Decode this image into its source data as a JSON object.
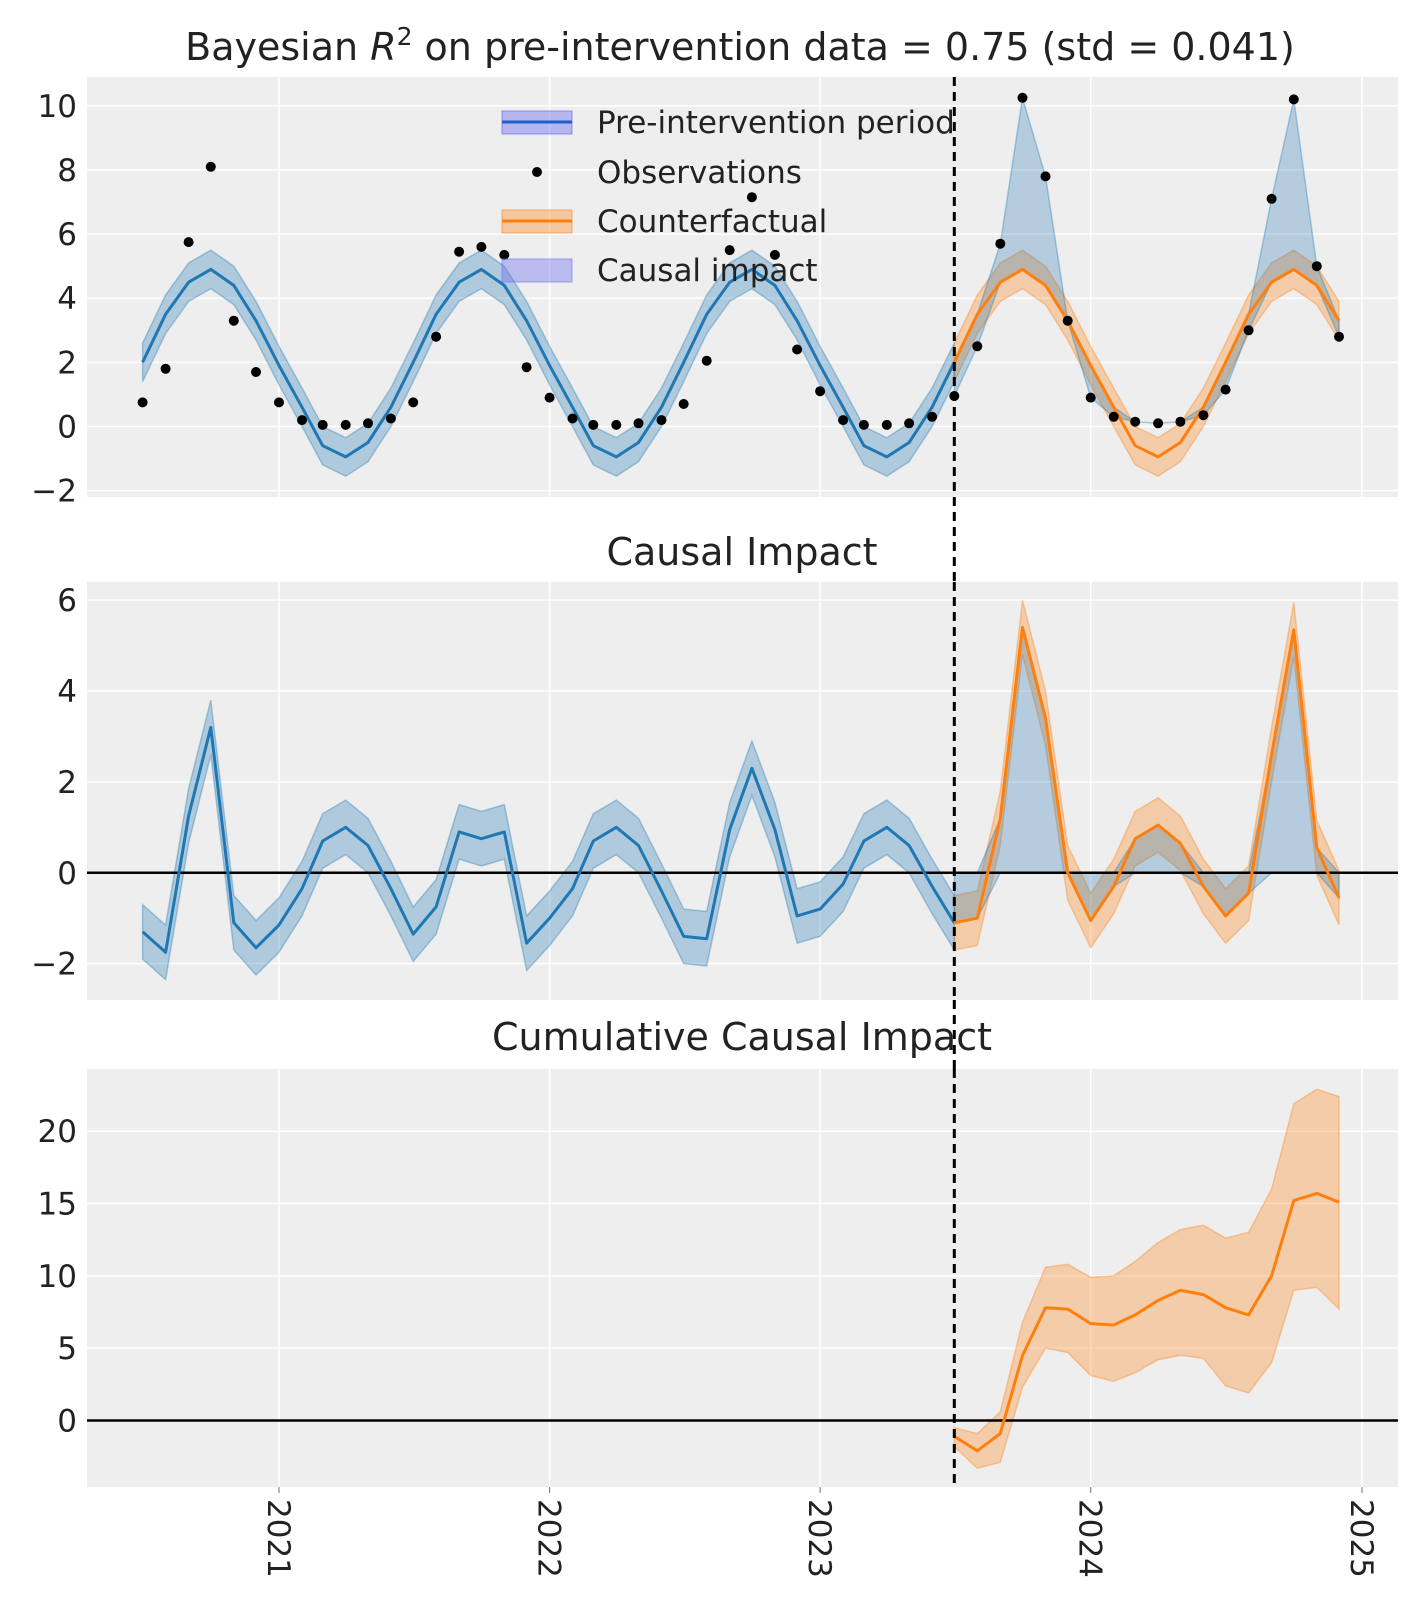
{
  "figure": {
    "panels": [
      "top",
      "middle",
      "bottom"
    ],
    "shared_x_tick_labels": [
      "2021",
      "2022",
      "2023",
      "2024",
      "2025"
    ]
  },
  "colors": {
    "pre_line": "#1f77b4",
    "pre_band": "#1f77b4",
    "counterfactual_line": "#ff7f0e",
    "counterfactual_band": "#ff7f0e",
    "legend_causal_patch": "#6e6ef0",
    "observations": "#000000",
    "panel_bg": "#eeeeee",
    "grid": "#ffffff",
    "intervention_line": "#000000"
  },
  "chart_data": [
    {
      "type": "line",
      "title_prefix": "Bayesian ",
      "title_math": "R",
      "title_sup": "2",
      "title_suffix": " on pre-intervention data = 0.75 (std = 0.041)",
      "xlabel": "",
      "ylabel": "",
      "ylim": [
        -2.2,
        10.9
      ],
      "yticks": [
        -2,
        0,
        2,
        4,
        6,
        8,
        10
      ],
      "ytick_labels": [
        "−2",
        "0",
        "2",
        "4",
        "6",
        "8",
        "10"
      ],
      "grid": true,
      "intervention_date": "2023-07-01",
      "legend": {
        "placement": "upper center",
        "entries": [
          "Pre-intervention period",
          "Observations",
          "Counterfactual",
          "Causal impact"
        ]
      },
      "series": [
        {
          "name": "Pre-intervention period",
          "kind": "mean_with_band",
          "x": [
            "2020-07",
            "2020-08",
            "2020-09",
            "2020-10",
            "2020-11",
            "2020-12",
            "2021-01",
            "2021-02",
            "2021-03",
            "2021-04",
            "2021-05",
            "2021-06",
            "2021-07",
            "2021-08",
            "2021-09",
            "2021-10",
            "2021-11",
            "2021-12",
            "2022-01",
            "2022-02",
            "2022-03",
            "2022-04",
            "2022-05",
            "2022-06",
            "2022-07",
            "2022-08",
            "2022-09",
            "2022-10",
            "2022-11",
            "2022-12",
            "2023-01",
            "2023-02",
            "2023-03",
            "2023-04",
            "2023-05",
            "2023-06",
            "2023-07"
          ],
          "mean": [
            2.0,
            3.5,
            4.5,
            4.9,
            4.4,
            3.3,
            1.9,
            0.6,
            -0.6,
            -0.95,
            -0.5,
            0.6,
            2.0,
            3.5,
            4.5,
            4.9,
            4.4,
            3.3,
            1.9,
            0.6,
            -0.6,
            -0.95,
            -0.5,
            0.6,
            2.0,
            3.5,
            4.5,
            4.9,
            4.4,
            3.3,
            1.9,
            0.6,
            -0.6,
            -0.95,
            -0.5,
            0.6,
            2.0
          ],
          "lower": [
            1.4,
            2.9,
            3.9,
            4.3,
            3.8,
            2.7,
            1.3,
            0.0,
            -1.2,
            -1.55,
            -1.1,
            0.0,
            1.4,
            2.9,
            3.9,
            4.3,
            3.8,
            2.7,
            1.3,
            0.0,
            -1.2,
            -1.55,
            -1.1,
            0.0,
            1.4,
            2.9,
            3.9,
            4.3,
            3.8,
            2.7,
            1.3,
            0.0,
            -1.2,
            -1.55,
            -1.1,
            0.0,
            1.4
          ],
          "upper": [
            2.6,
            4.1,
            5.1,
            5.5,
            5.0,
            3.9,
            2.5,
            1.2,
            0.0,
            -0.35,
            0.1,
            1.2,
            2.6,
            4.1,
            5.1,
            5.5,
            5.0,
            3.9,
            2.5,
            1.2,
            0.0,
            -0.35,
            0.1,
            1.2,
            2.6,
            4.1,
            5.1,
            5.5,
            5.0,
            3.9,
            2.5,
            1.2,
            0.0,
            -0.35,
            0.1,
            1.2,
            2.6
          ]
        },
        {
          "name": "Counterfactual",
          "kind": "mean_with_band",
          "x": [
            "2023-07",
            "2023-08",
            "2023-09",
            "2023-10",
            "2023-11",
            "2023-12",
            "2024-01",
            "2024-02",
            "2024-03",
            "2024-04",
            "2024-05",
            "2024-06",
            "2024-07",
            "2024-08",
            "2024-09",
            "2024-10",
            "2024-11",
            "2024-12"
          ],
          "mean": [
            2.0,
            3.5,
            4.5,
            4.9,
            4.4,
            3.3,
            1.9,
            0.6,
            -0.6,
            -0.95,
            -0.5,
            0.6,
            2.0,
            3.5,
            4.5,
            4.9,
            4.4,
            3.3
          ],
          "lower": [
            1.4,
            2.9,
            3.9,
            4.3,
            3.8,
            2.7,
            1.3,
            0.0,
            -1.2,
            -1.55,
            -1.1,
            0.0,
            1.4,
            2.9,
            3.9,
            4.3,
            3.8,
            2.7
          ],
          "upper": [
            2.6,
            4.1,
            5.1,
            5.5,
            5.0,
            3.9,
            2.5,
            1.2,
            0.0,
            -0.35,
            0.1,
            1.2,
            2.6,
            4.1,
            5.1,
            5.5,
            5.0,
            3.9
          ]
        },
        {
          "name": "Observations",
          "kind": "scatter",
          "x": [
            "2020-07",
            "2020-08",
            "2020-09",
            "2020-10",
            "2020-11",
            "2020-12",
            "2021-01",
            "2021-02",
            "2021-03",
            "2021-04",
            "2021-05",
            "2021-06",
            "2021-07",
            "2021-08",
            "2021-09",
            "2021-10",
            "2021-11",
            "2021-12",
            "2022-01",
            "2022-02",
            "2022-03",
            "2022-04",
            "2022-05",
            "2022-06",
            "2022-07",
            "2022-08",
            "2022-09",
            "2022-10",
            "2022-11",
            "2022-12",
            "2023-01",
            "2023-02",
            "2023-03",
            "2023-04",
            "2023-05",
            "2023-06",
            "2023-07",
            "2023-08",
            "2023-09",
            "2023-10",
            "2023-11",
            "2023-12",
            "2024-01",
            "2024-02",
            "2024-03",
            "2024-04",
            "2024-05",
            "2024-06",
            "2024-07",
            "2024-08",
            "2024-09",
            "2024-10",
            "2024-11",
            "2024-12"
          ],
          "y": [
            0.75,
            1.8,
            5.75,
            8.1,
            3.3,
            1.7,
            0.75,
            0.2,
            0.05,
            0.05,
            0.1,
            0.25,
            0.75,
            2.8,
            5.45,
            5.6,
            5.35,
            1.85,
            0.9,
            0.25,
            0.05,
            0.05,
            0.1,
            0.2,
            0.7,
            2.05,
            5.5,
            7.15,
            5.35,
            2.4,
            1.1,
            0.2,
            0.05,
            0.05,
            0.1,
            0.3,
            0.95,
            2.5,
            5.7,
            10.25,
            7.8,
            3.3,
            0.9,
            0.3,
            0.15,
            0.1,
            0.15,
            0.35,
            1.15,
            3.0,
            7.1,
            10.2,
            5.0,
            2.8
          ]
        },
        {
          "name": "Causal impact",
          "kind": "band",
          "x": [
            "2023-07",
            "2023-08",
            "2023-09",
            "2023-10",
            "2023-11",
            "2023-12",
            "2024-01",
            "2024-02",
            "2024-03",
            "2024-04",
            "2024-05",
            "2024-06",
            "2024-07",
            "2024-08",
            "2024-09",
            "2024-10",
            "2024-11",
            "2024-12"
          ],
          "lower": [
            0.95,
            2.5,
            4.5,
            4.9,
            4.4,
            3.3,
            0.9,
            0.3,
            0.15,
            0.1,
            0.15,
            0.35,
            1.15,
            3.0,
            4.5,
            4.9,
            4.4,
            2.8
          ],
          "upper": [
            2.0,
            3.5,
            5.7,
            10.25,
            7.8,
            3.3,
            1.9,
            0.6,
            0.15,
            0.1,
            0.15,
            0.6,
            2.0,
            3.5,
            7.1,
            10.2,
            5.0,
            3.3
          ]
        }
      ]
    },
    {
      "type": "line",
      "title": "Causal Impact",
      "xlabel": "",
      "ylabel": "",
      "ylim": [
        -2.8,
        6.4
      ],
      "yticks": [
        -2,
        0,
        2,
        4,
        6
      ],
      "ytick_labels": [
        "−2",
        "0",
        "2",
        "4",
        "6"
      ],
      "grid": true,
      "intervention_date": "2023-07-01",
      "zero_line": true,
      "series": [
        {
          "kind": "mean_with_band",
          "x": [
            "2020-07",
            "2020-08",
            "2020-09",
            "2020-10",
            "2020-11",
            "2020-12",
            "2021-01",
            "2021-02",
            "2021-03",
            "2021-04",
            "2021-05",
            "2021-06",
            "2021-07",
            "2021-08",
            "2021-09",
            "2021-10",
            "2021-11",
            "2021-12",
            "2022-01",
            "2022-02",
            "2022-03",
            "2022-04",
            "2022-05",
            "2022-06",
            "2022-07",
            "2022-08",
            "2022-09",
            "2022-10",
            "2022-11",
            "2022-12",
            "2023-01",
            "2023-02",
            "2023-03",
            "2023-04",
            "2023-05",
            "2023-06",
            "2023-07"
          ],
          "mean": [
            -1.3,
            -1.75,
            1.25,
            3.2,
            -1.1,
            -1.65,
            -1.15,
            -0.35,
            0.7,
            1.0,
            0.6,
            -0.35,
            -1.35,
            -0.75,
            0.9,
            0.75,
            0.9,
            -1.55,
            -1.0,
            -0.35,
            0.7,
            1.0,
            0.6,
            -0.4,
            -1.4,
            -1.45,
            0.95,
            2.3,
            0.95,
            -0.95,
            -0.8,
            -0.25,
            0.7,
            1.0,
            0.6,
            -0.3,
            -1.1
          ],
          "lower": [
            -1.9,
            -2.35,
            0.65,
            2.6,
            -1.7,
            -2.25,
            -1.75,
            -0.95,
            0.1,
            0.4,
            0.0,
            -0.95,
            -1.95,
            -1.35,
            0.3,
            0.15,
            0.3,
            -2.15,
            -1.6,
            -0.95,
            0.1,
            0.4,
            0.0,
            -1.0,
            -2.0,
            -2.05,
            0.35,
            1.7,
            0.35,
            -1.55,
            -1.4,
            -0.85,
            0.1,
            0.4,
            0.0,
            -0.9,
            -1.7
          ],
          "upper": [
            -0.7,
            -1.15,
            1.85,
            3.8,
            -0.5,
            -1.05,
            -0.55,
            0.25,
            1.3,
            1.6,
            1.2,
            0.25,
            -0.75,
            -0.15,
            1.5,
            1.35,
            1.5,
            -0.95,
            -0.4,
            0.25,
            1.3,
            1.6,
            1.2,
            0.2,
            -0.8,
            -0.85,
            1.55,
            2.9,
            1.55,
            -0.35,
            -0.2,
            0.35,
            1.3,
            1.6,
            1.2,
            0.3,
            -0.5
          ]
        },
        {
          "kind": "mean_with_band",
          "x": [
            "2023-07",
            "2023-08",
            "2023-09",
            "2023-10",
            "2023-11",
            "2023-12",
            "2024-01",
            "2024-02",
            "2024-03",
            "2024-04",
            "2024-05",
            "2024-06",
            "2024-07",
            "2024-08",
            "2024-09",
            "2024-10",
            "2024-11",
            "2024-12"
          ],
          "mean": [
            -1.1,
            -1.0,
            1.2,
            5.4,
            3.4,
            0.0,
            -1.05,
            -0.3,
            0.75,
            1.05,
            0.65,
            -0.3,
            -0.95,
            -0.45,
            2.6,
            5.35,
            0.55,
            -0.55
          ],
          "lower": [
            -1.7,
            -1.6,
            0.6,
            4.8,
            2.8,
            -0.6,
            -1.65,
            -0.9,
            0.15,
            0.45,
            0.05,
            -0.9,
            -1.55,
            -1.05,
            2.0,
            4.75,
            -0.05,
            -1.15
          ],
          "upper": [
            -0.5,
            -0.4,
            1.8,
            6.0,
            4.0,
            0.6,
            -0.45,
            0.3,
            1.35,
            1.65,
            1.25,
            0.3,
            -0.35,
            0.15,
            3.2,
            5.95,
            1.15,
            0.05
          ]
        },
        {
          "name": "Causal impact",
          "kind": "band",
          "x": [
            "2023-07",
            "2023-08",
            "2023-09",
            "2023-10",
            "2023-11",
            "2023-12",
            "2024-01",
            "2024-02",
            "2024-03",
            "2024-04",
            "2024-05",
            "2024-06",
            "2024-07",
            "2024-08",
            "2024-09",
            "2024-10",
            "2024-11",
            "2024-12"
          ],
          "lower": [
            -1.1,
            -1.0,
            0.0,
            0.0,
            0.0,
            0.0,
            -1.05,
            -0.3,
            0.0,
            0.0,
            0.0,
            -0.3,
            -0.95,
            -0.45,
            0.0,
            0.0,
            0.0,
            -0.55
          ],
          "upper": [
            0.0,
            0.0,
            1.2,
            5.4,
            3.4,
            0.0,
            0.0,
            0.0,
            0.75,
            1.05,
            0.65,
            0.0,
            0.0,
            0.0,
            2.6,
            5.35,
            0.55,
            0.0
          ]
        }
      ]
    },
    {
      "type": "line",
      "title": "Cumulative Causal Impact",
      "xlabel": "",
      "ylabel": "",
      "ylim": [
        -4.6,
        24.3
      ],
      "yticks": [
        0,
        5,
        10,
        15,
        20
      ],
      "ytick_labels": [
        "0",
        "5",
        "10",
        "15",
        "20"
      ],
      "grid": true,
      "intervention_date": "2023-07-01",
      "zero_line": true,
      "xtick_labels": [
        "2021",
        "2022",
        "2023",
        "2024",
        "2025"
      ],
      "xtick_rotation": 90,
      "series": [
        {
          "kind": "mean_with_band",
          "x": [
            "2023-07",
            "2023-08",
            "2023-09",
            "2023-10",
            "2023-11",
            "2023-12",
            "2024-01",
            "2024-02",
            "2024-03",
            "2024-04",
            "2024-05",
            "2024-06",
            "2024-07",
            "2024-08",
            "2024-09",
            "2024-10",
            "2024-11",
            "2024-12"
          ],
          "mean": [
            -1.1,
            -2.1,
            -0.9,
            4.5,
            7.8,
            7.7,
            6.7,
            6.6,
            7.3,
            8.3,
            9.0,
            8.7,
            7.8,
            7.3,
            10.0,
            15.2,
            15.7,
            15.1
          ],
          "lower": [
            -1.8,
            -3.3,
            -2.9,
            2.3,
            5.0,
            4.7,
            3.1,
            2.7,
            3.3,
            4.2,
            4.5,
            4.3,
            2.4,
            1.9,
            4.0,
            9.0,
            9.2,
            7.7
          ],
          "upper": [
            -0.5,
            -0.9,
            0.6,
            6.8,
            10.6,
            10.8,
            9.9,
            10.0,
            11.0,
            12.3,
            13.2,
            13.5,
            12.6,
            13.0,
            16.0,
            21.9,
            22.9,
            22.4
          ]
        }
      ]
    }
  ]
}
